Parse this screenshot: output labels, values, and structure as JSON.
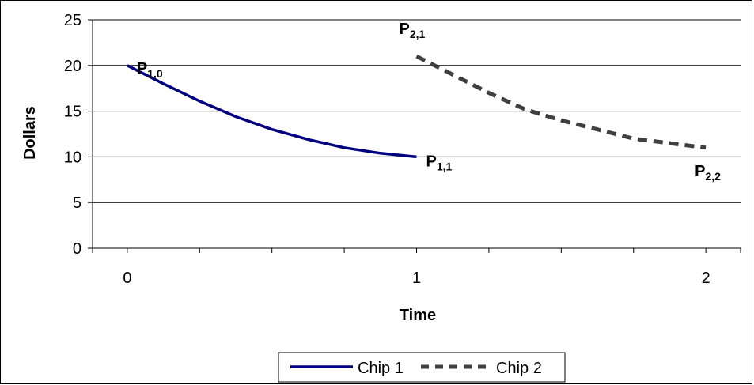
{
  "chart_data": {
    "type": "line",
    "title": "",
    "xlabel": "Time",
    "ylabel": "Dollars",
    "xlim": [
      -0.12,
      2.12
    ],
    "ylim": [
      0,
      25
    ],
    "x_ticks": [
      0,
      1,
      2
    ],
    "x_tick_labels": [
      "0",
      "1",
      "2"
    ],
    "y_ticks": [
      0,
      5,
      10,
      15,
      20,
      25
    ],
    "y_tick_labels": [
      "0",
      "5",
      "10",
      "15",
      "20",
      "25"
    ],
    "grid": "horizontal",
    "legend": "bottom",
    "series": [
      {
        "name": "Chip 1",
        "style": "solid",
        "color": "#000080",
        "x": [
          0,
          0.125,
          0.25,
          0.375,
          0.5,
          0.625,
          0.75,
          0.875,
          1.0
        ],
        "y": [
          20.0,
          18.0,
          16.1,
          14.4,
          13.0,
          11.9,
          11.0,
          10.4,
          10.0
        ]
      },
      {
        "name": "Chip 2",
        "style": "dashed",
        "color": "#404040",
        "x": [
          1.0,
          1.125,
          1.25,
          1.375,
          1.5,
          1.625,
          1.75,
          1.875,
          2.0
        ],
        "y": [
          21.0,
          19.0,
          17.0,
          15.2,
          14.0,
          13.0,
          12.0,
          11.5,
          11.0
        ]
      }
    ],
    "annotations": [
      {
        "base": "P",
        "sub": "1,0",
        "x": 0,
        "y": 20
      },
      {
        "base": "P",
        "sub": "1,1",
        "x": 1,
        "y": 10
      },
      {
        "base": "P",
        "sub": "2,1",
        "x": 1,
        "y": 21
      },
      {
        "base": "P",
        "sub": "2,2",
        "x": 2,
        "y": 11
      }
    ]
  }
}
